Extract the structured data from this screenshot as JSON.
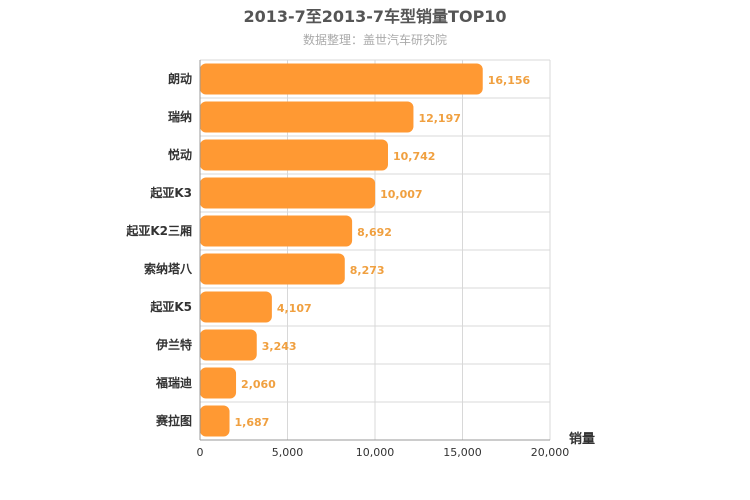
{
  "chart_data": {
    "type": "bar",
    "orientation": "horizontal",
    "title": "2013-7至2013-7车型销量TOP10",
    "subtitle": "数据整理：盖世汽车研究院",
    "xlabel": "销量",
    "ylabel": "",
    "categories": [
      "朗动",
      "瑞纳",
      "悦动",
      "起亚K3",
      "起亚K2三厢",
      "索纳塔八",
      "起亚K5",
      "伊兰特",
      "福瑞迪",
      "赛拉图"
    ],
    "values": [
      16156,
      12197,
      10742,
      10007,
      8692,
      8273,
      4107,
      3243,
      2060,
      1687
    ],
    "value_labels": [
      "16,156",
      "12,197",
      "10,742",
      "10,007",
      "8,692",
      "8,273",
      "4,107",
      "3,243",
      "2,060",
      "1,687"
    ],
    "xlim": [
      0,
      20000
    ],
    "xticks": [
      0,
      5000,
      10000,
      15000,
      20000
    ],
    "xtick_labels": [
      "0",
      "5,000",
      "10,000",
      "15,000",
      "20,000"
    ],
    "grid": true,
    "legend": "none",
    "bar_color": "#ff9933",
    "label_color": "#f0a040"
  }
}
